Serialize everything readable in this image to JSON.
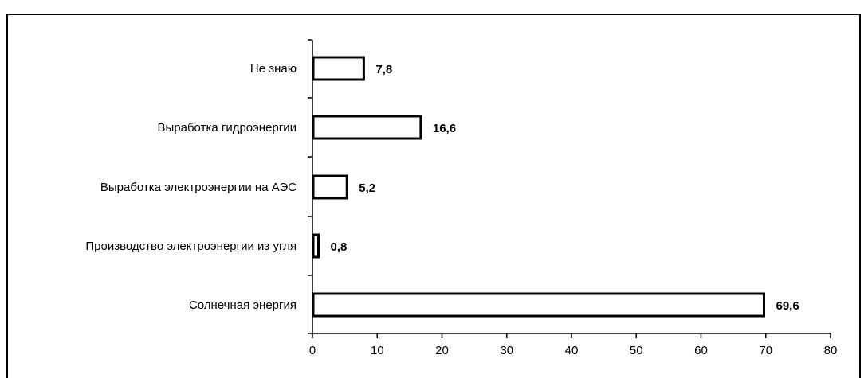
{
  "chart_data": {
    "type": "bar",
    "orientation": "horizontal",
    "categories": [
      "Не знаю",
      "Выработка гидроэнергии",
      "Выработка электроэнергии на АЭС",
      "Производство электроэнергии из угля",
      "Солнечная энергия"
    ],
    "values": [
      7.8,
      16.6,
      5.2,
      0.8,
      69.6
    ],
    "value_labels": [
      "7,8",
      "16,6",
      "5,2",
      "0,8",
      "69,6"
    ],
    "xlim": [
      0,
      80
    ],
    "xticks": [
      "0",
      "10",
      "20",
      "30",
      "40",
      "50",
      "60",
      "70",
      "80"
    ],
    "bar_fill": "#ffffff",
    "bar_stroke": "#000000",
    "grid": false,
    "legend": "none"
  }
}
